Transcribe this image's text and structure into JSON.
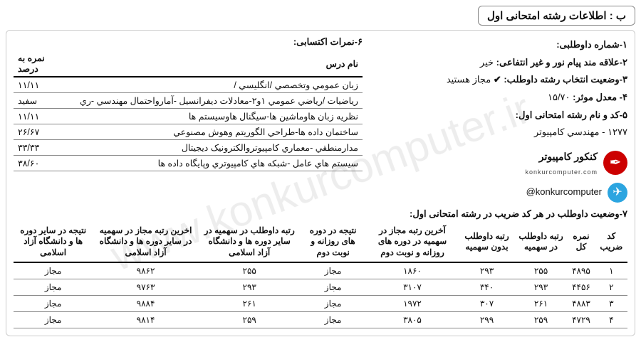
{
  "watermark": "www.konkurcomputer.ir",
  "section_title": "ب : اطلاعات رشته امتحانی اول",
  "items": {
    "i1_label": "۱-شماره داوطلبی:",
    "i2_label": "۲-علاقه مند پیام نور و غیر انتفاعی:",
    "i2_value": "خیر",
    "i3_label": "۳-وضعیت انتخاب رشته داوطلب:",
    "i3_value": "مجاز هستید",
    "i4_label": "۴- معدل موثر:",
    "i4_value": "۱۵/۷۰",
    "i5_label": "۵-کد و نام رشته امتحانی اول:",
    "i5_value": "۱۲۷۷ - مهندسي کامپیوتر"
  },
  "logo": {
    "brand": "کنکور کامپیوتر",
    "site": "konkurcomputer.com",
    "handle": "@konkurcomputer"
  },
  "scores": {
    "title": "۶-نمرات اکتسابی:",
    "col_name": "نام درس",
    "col_pct": "نمره به درصد",
    "rows": [
      {
        "name": "زبان عمومي وتخصصي /انگليسي /",
        "pct": "۱۱/۱۱"
      },
      {
        "name": "رياضيات /رياضي عمومي ۱و۲-معادلات ديفرانسيل -آمارواحتمال مهندسي -ري",
        "pct": "سفید"
      },
      {
        "name": "نظريه زبان هاوماشين ها-سيگنال هاوسيستم ها",
        "pct": "۱۱/۱۱"
      },
      {
        "name": "ساختمان داده ها-طراحي الگوريتم وهوش مصنوعي",
        "pct": "۲۶/۶۷"
      },
      {
        "name": "مدارمنطقي -معماري کامپيوتروالکترونيک ديجيتال",
        "pct": "۳۳/۳۳"
      },
      {
        "name": "سيستم هاي عامل -شبکه هاي کامپيوتري وپايگاه داده ها",
        "pct": "۳۸/۶۰"
      }
    ]
  },
  "sec7": {
    "title": "۷-وضعیت داوطلب در هر کد ضریب در رشته امتحانی اول:",
    "headers": {
      "h1": "کد ضریب",
      "h2": "نمره کل",
      "h3": "رتبه داوطلب در سهمیه",
      "h4": "رتبه داوطلب بدون سهمیه",
      "h5": "آخرین رتبه مجاز در سهمیه در دوره های روزانه و نوبت دوم",
      "h6": "نتیجه در دوره های روزانه و نوبت دوم",
      "h7": "رتبه داوطلب در سهمیه در سایر دوره ها و دانشگاه آزاد اسلامی",
      "h8": "اخرین رتبه مجاز در سهمیه در سایر دوره ها و دانشگاه آزاد اسلامی",
      "h9": "نتیجه در سایر دوره ها و دانشگاه آزاد اسلامی"
    },
    "rows": [
      {
        "c1": "۱",
        "c2": "۴۸۹۵",
        "c3": "۲۵۵",
        "c4": "۲۹۳",
        "c5": "۱۸۶۰",
        "c6": "مجاز",
        "c7": "۲۵۵",
        "c8": "۹۸۶۲",
        "c9": "مجاز"
      },
      {
        "c1": "۲",
        "c2": "۴۴۵۶",
        "c3": "۲۹۳",
        "c4": "۳۴۰",
        "c5": "۳۱۰۷",
        "c6": "مجاز",
        "c7": "۲۹۳",
        "c8": "۹۷۶۳",
        "c9": "مجاز"
      },
      {
        "c1": "۳",
        "c2": "۴۸۸۳",
        "c3": "۲۶۱",
        "c4": "۳۰۷",
        "c5": "۱۹۷۲",
        "c6": "مجاز",
        "c7": "۲۶۱",
        "c8": "۹۸۸۴",
        "c9": "مجاز"
      },
      {
        "c1": "۴",
        "c2": "۴۷۲۹",
        "c3": "۲۵۹",
        "c4": "۲۹۹",
        "c5": "۳۸۰۵",
        "c6": "مجاز",
        "c7": "۲۵۹",
        "c8": "۹۸۱۴",
        "c9": "مجاز"
      }
    ]
  }
}
